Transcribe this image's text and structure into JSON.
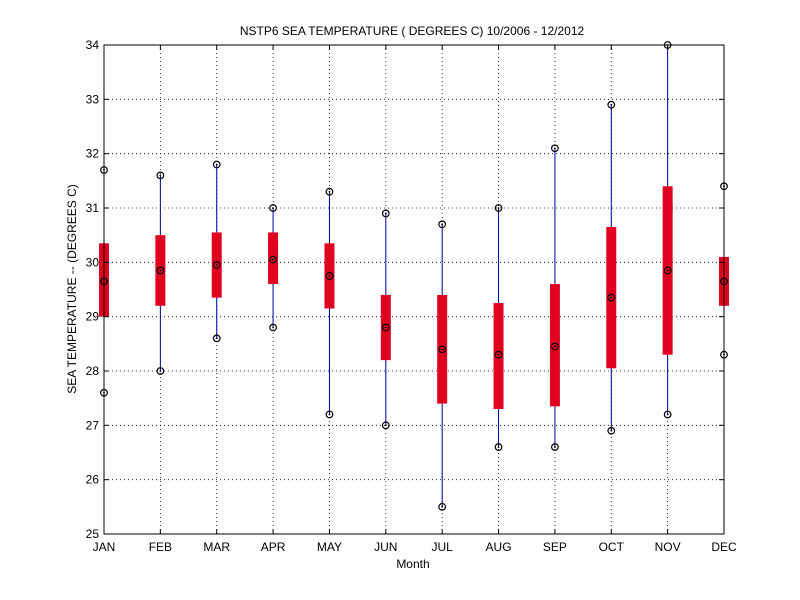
{
  "chart_data": {
    "type": "box",
    "title": "NSTP6  SEA TEMPERATURE ( DEGREES C) 10/2006 - 12/2012",
    "xlabel": "Month",
    "ylabel": "SEA TEMPERATURE -- (DEGREES C)",
    "ylim": [
      25,
      34
    ],
    "yticks": [
      "25",
      "26",
      "27",
      "28",
      "29",
      "30",
      "31",
      "32",
      "33",
      "34"
    ],
    "grid": true,
    "categories": [
      "JAN",
      "FEB",
      "MAR",
      "APR",
      "MAY",
      "JUN",
      "JUL",
      "AUG",
      "SEP",
      "OCT",
      "NOV",
      "DEC"
    ],
    "series": [
      {
        "min": [
          27.6,
          28.0,
          28.6,
          28.8,
          27.2,
          27.0,
          25.5,
          26.6,
          26.6,
          26.9,
          27.2,
          28.3
        ],
        "q1": [
          29.0,
          29.2,
          29.35,
          29.6,
          29.15,
          28.2,
          27.4,
          27.3,
          27.35,
          28.05,
          28.3,
          29.2
        ],
        "median": [
          29.65,
          29.85,
          29.95,
          30.05,
          29.75,
          28.8,
          28.4,
          28.3,
          28.45,
          29.35,
          29.85,
          29.65
        ],
        "q3": [
          30.35,
          30.5,
          30.55,
          30.55,
          30.35,
          29.4,
          29.4,
          29.25,
          29.6,
          30.65,
          31.4,
          30.1
        ],
        "max": [
          31.7,
          31.6,
          31.8,
          31.0,
          31.3,
          30.9,
          30.7,
          31.0,
          32.1,
          32.9,
          34.0,
          31.4
        ]
      }
    ],
    "colors": {
      "whisker": "#0000a0",
      "box": "#e00020",
      "marker": "#000000",
      "grid": "#000000"
    }
  }
}
